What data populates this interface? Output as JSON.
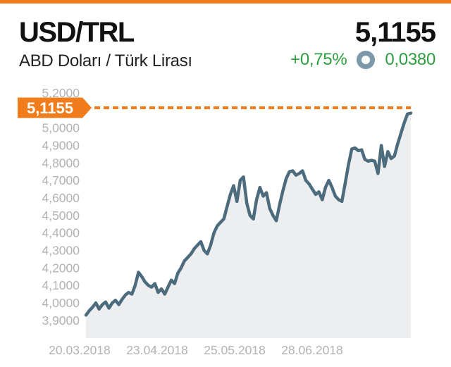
{
  "header": {
    "pair": "USD/TRL",
    "price": "5,1155",
    "subtitle": "ABD Doları / Türk Lirası",
    "change_percent": "+0,75%",
    "change_absolute": "0,0380",
    "colors": {
      "accent_orange": "#F07C1B",
      "positive_green": "#2D9E3F",
      "icon_blue_gray": "#7D98A8",
      "title_black": "#111111"
    }
  },
  "chart_data": {
    "type": "area",
    "title": "USD/TRL - ABD Doları / Türk Lirası",
    "series": [
      {
        "name": "USD/TRL",
        "values": [
          3.93,
          3.955,
          3.975,
          4.0,
          3.965,
          3.99,
          4.005,
          3.97,
          4.0,
          4.015,
          3.99,
          4.02,
          4.045,
          4.06,
          4.05,
          4.1,
          4.175,
          4.15,
          4.12,
          4.1,
          4.09,
          4.11,
          4.06,
          4.08,
          4.05,
          4.09,
          4.13,
          4.11,
          4.17,
          4.2,
          4.24,
          4.26,
          4.28,
          4.31,
          4.33,
          4.35,
          4.3,
          4.28,
          4.33,
          4.4,
          4.44,
          4.46,
          4.48,
          4.55,
          4.62,
          4.67,
          4.58,
          4.7,
          4.72,
          4.57,
          4.5,
          4.48,
          4.59,
          4.66,
          4.61,
          4.63,
          4.54,
          4.5,
          4.47,
          4.56,
          4.64,
          4.71,
          4.75,
          4.755,
          4.73,
          4.74,
          4.755,
          4.7,
          4.68,
          4.65,
          4.62,
          4.635,
          4.59,
          4.66,
          4.7,
          4.66,
          4.61,
          4.59,
          4.58,
          4.685,
          4.79,
          4.88,
          4.886,
          4.87,
          4.875,
          4.82,
          4.81,
          4.815,
          4.81,
          4.74,
          4.9,
          4.78,
          4.865,
          4.825,
          4.84,
          4.91,
          4.97,
          5.03,
          5.08,
          5.085
        ]
      }
    ],
    "current_value": 5.1155,
    "current_value_label": "5,1155",
    "y_axis": {
      "min": 3.9,
      "max": 5.2,
      "ticks": [
        {
          "label": "5,2000",
          "value": 5.2
        },
        {
          "label": "5,0000",
          "value": 5.0
        },
        {
          "label": "4,9000",
          "value": 4.9
        },
        {
          "label": "4,8000",
          "value": 4.8
        },
        {
          "label": "4,7000",
          "value": 4.7
        },
        {
          "label": "4,6000",
          "value": 4.6
        },
        {
          "label": "4,5000",
          "value": 4.5
        },
        {
          "label": "4,4000",
          "value": 4.4
        },
        {
          "label": "4,3000",
          "value": 4.3
        },
        {
          "label": "4,2000",
          "value": 4.2
        },
        {
          "label": "4,1000",
          "value": 4.1
        },
        {
          "label": "4,0000",
          "value": 4.0
        },
        {
          "label": "3,9000",
          "value": 3.9
        }
      ]
    },
    "x_axis": {
      "ticks": [
        "20.03.2018",
        "23.04.2018",
        "25.05.2018",
        "28.06.2018"
      ]
    },
    "grid": false,
    "legend": false,
    "line_color": "#4C6C7E",
    "fill_color": "#EDEEF0",
    "dash_color": "#F07C1B",
    "tick_color": "#B2B2B5",
    "tag_text_color": "#FFFFFF"
  }
}
